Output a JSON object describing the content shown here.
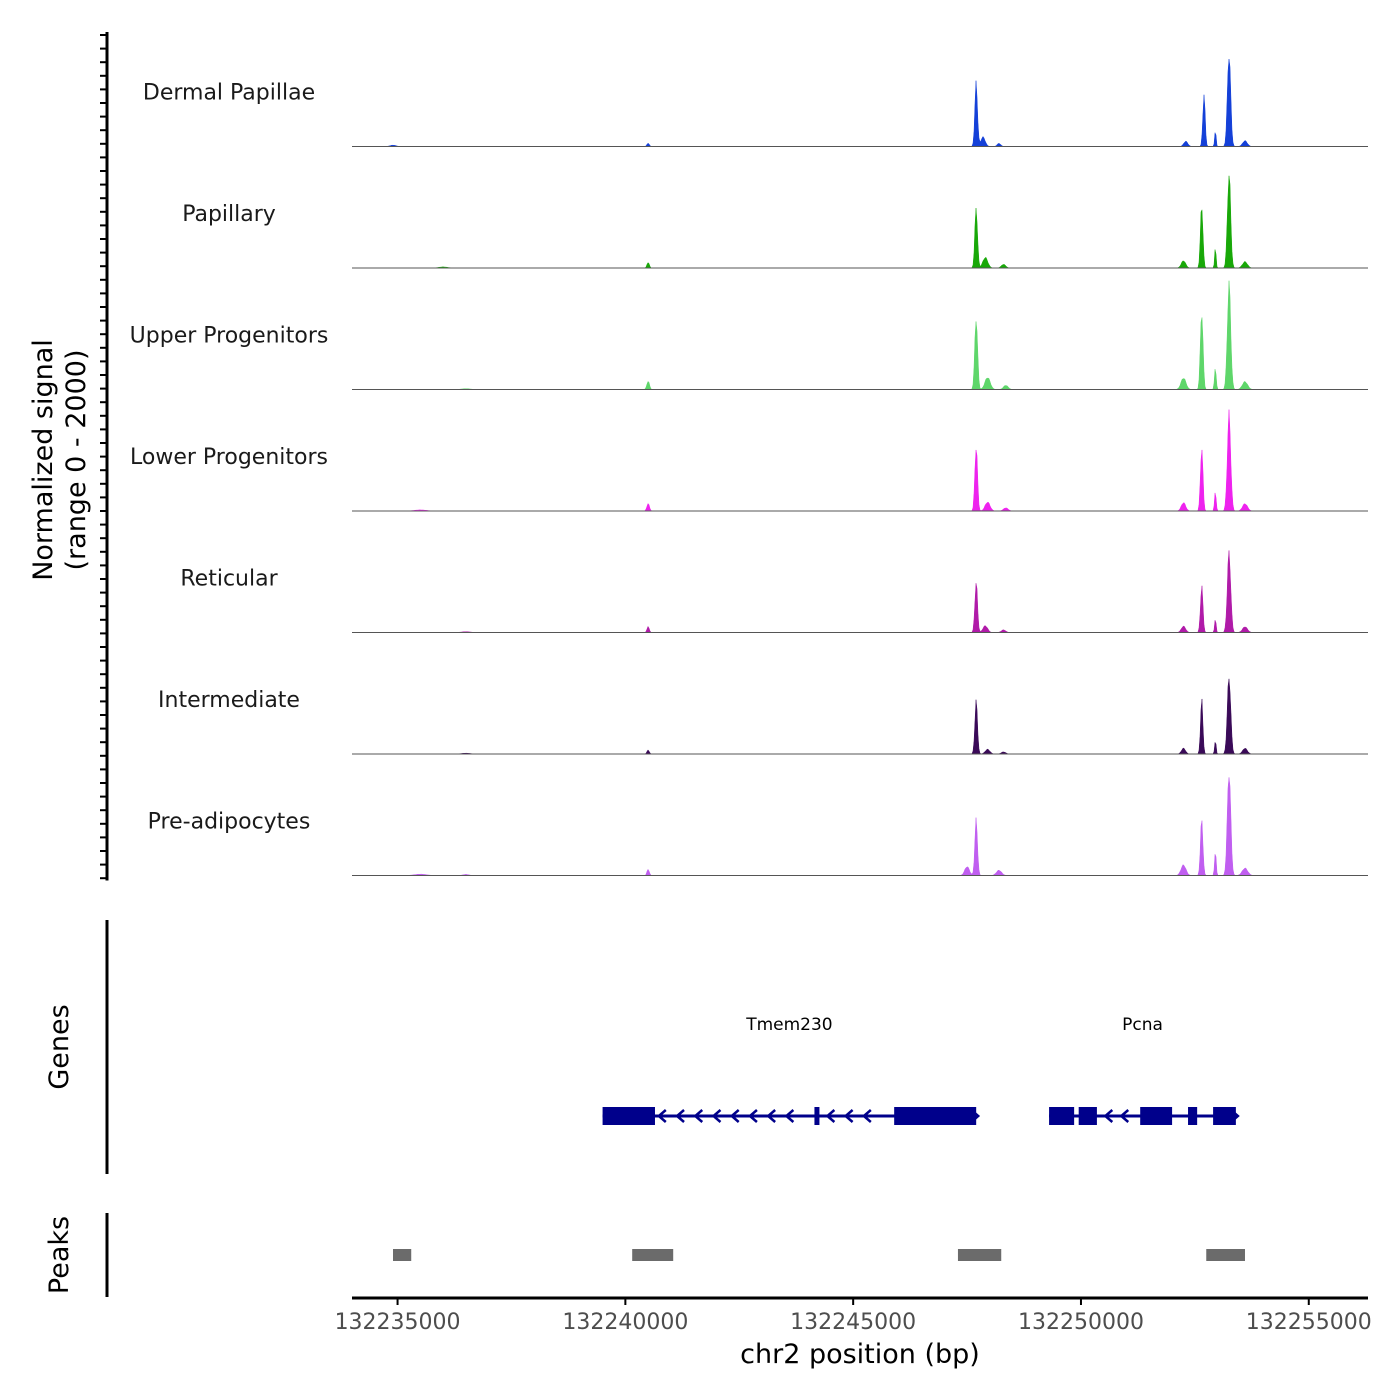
{
  "chart_data": {
    "type": "area",
    "title": "",
    "ylabel_line1": "Normalized signal",
    "ylabel_line2": "(range 0 - 2000)",
    "xlabel": "chr2 position (bp)",
    "chromosome": "chr2",
    "xlim": [
      132234000,
      132256300
    ],
    "ylim": [
      0,
      2000
    ],
    "x_ticks": [
      132235000,
      132240000,
      132245000,
      132250000,
      132255000
    ],
    "x_tick_labels": [
      "132235000",
      "132240000",
      "132245000",
      "132250000",
      "132255000"
    ],
    "series": [
      {
        "name": "Dermal Papillae",
        "color": "#1440d8",
        "peaks": [
          {
            "x": 132234900,
            "y": 25,
            "w": 200
          },
          {
            "x": 132240500,
            "y": 65,
            "w": 80
          },
          {
            "x": 132247700,
            "y": 1200,
            "w": 90
          },
          {
            "x": 132247850,
            "y": 180,
            "w": 150
          },
          {
            "x": 132248200,
            "y": 60,
            "w": 120
          },
          {
            "x": 132252700,
            "y": 980,
            "w": 80
          },
          {
            "x": 132252950,
            "y": 300,
            "w": 50
          },
          {
            "x": 132253250,
            "y": 1780,
            "w": 110
          },
          {
            "x": 132253600,
            "y": 110,
            "w": 160
          },
          {
            "x": 132252300,
            "y": 100,
            "w": 140
          }
        ]
      },
      {
        "name": "Papillary",
        "color": "#18a808",
        "peaks": [
          {
            "x": 132236000,
            "y": 20,
            "w": 300
          },
          {
            "x": 132240500,
            "y": 110,
            "w": 80
          },
          {
            "x": 132247700,
            "y": 1150,
            "w": 90
          },
          {
            "x": 132247900,
            "y": 200,
            "w": 170
          },
          {
            "x": 132248300,
            "y": 70,
            "w": 150
          },
          {
            "x": 132252650,
            "y": 1200,
            "w": 85
          },
          {
            "x": 132252950,
            "y": 380,
            "w": 50
          },
          {
            "x": 132253250,
            "y": 1800,
            "w": 110
          },
          {
            "x": 132253600,
            "y": 120,
            "w": 170
          },
          {
            "x": 132252250,
            "y": 140,
            "w": 150
          }
        ]
      },
      {
        "name": "Upper Progenitors",
        "color": "#5ed66a",
        "peaks": [
          {
            "x": 132236500,
            "y": 15,
            "w": 300
          },
          {
            "x": 132240500,
            "y": 160,
            "w": 90
          },
          {
            "x": 132247700,
            "y": 1380,
            "w": 95
          },
          {
            "x": 132247950,
            "y": 230,
            "w": 180
          },
          {
            "x": 132248350,
            "y": 80,
            "w": 160
          },
          {
            "x": 132252650,
            "y": 1500,
            "w": 90
          },
          {
            "x": 132252950,
            "y": 400,
            "w": 60
          },
          {
            "x": 132253250,
            "y": 2000,
            "w": 115
          },
          {
            "x": 132253600,
            "y": 150,
            "w": 180
          },
          {
            "x": 132252250,
            "y": 220,
            "w": 170
          }
        ]
      },
      {
        "name": "Lower Progenitors",
        "color": "#ee22ee",
        "peaks": [
          {
            "x": 132235500,
            "y": 20,
            "w": 400
          },
          {
            "x": 132240500,
            "y": 140,
            "w": 90
          },
          {
            "x": 132247700,
            "y": 1250,
            "w": 90
          },
          {
            "x": 132247950,
            "y": 170,
            "w": 170
          },
          {
            "x": 132248350,
            "y": 60,
            "w": 160
          },
          {
            "x": 132252650,
            "y": 1220,
            "w": 85
          },
          {
            "x": 132252950,
            "y": 380,
            "w": 55
          },
          {
            "x": 132253250,
            "y": 1820,
            "w": 115
          },
          {
            "x": 132253600,
            "y": 140,
            "w": 170
          },
          {
            "x": 132252250,
            "y": 160,
            "w": 150
          }
        ]
      },
      {
        "name": "Reticular",
        "color": "#b01aa8",
        "peaks": [
          {
            "x": 132236500,
            "y": 15,
            "w": 300
          },
          {
            "x": 132240500,
            "y": 110,
            "w": 80
          },
          {
            "x": 132247700,
            "y": 960,
            "w": 90
          },
          {
            "x": 132247900,
            "y": 130,
            "w": 160
          },
          {
            "x": 132248300,
            "y": 50,
            "w": 150
          },
          {
            "x": 132252650,
            "y": 880,
            "w": 85
          },
          {
            "x": 132252950,
            "y": 280,
            "w": 50
          },
          {
            "x": 132253250,
            "y": 1520,
            "w": 115
          },
          {
            "x": 132253600,
            "y": 110,
            "w": 170
          },
          {
            "x": 132252250,
            "y": 120,
            "w": 150
          }
        ]
      },
      {
        "name": "Intermediate",
        "color": "#3a0a58",
        "peaks": [
          {
            "x": 132236500,
            "y": 15,
            "w": 300
          },
          {
            "x": 132240500,
            "y": 75,
            "w": 80
          },
          {
            "x": 132247700,
            "y": 1000,
            "w": 90
          },
          {
            "x": 132247950,
            "y": 90,
            "w": 160
          },
          {
            "x": 132248300,
            "y": 40,
            "w": 150
          },
          {
            "x": 132252650,
            "y": 1020,
            "w": 80
          },
          {
            "x": 132252950,
            "y": 270,
            "w": 50
          },
          {
            "x": 132253250,
            "y": 1480,
            "w": 115
          },
          {
            "x": 132253600,
            "y": 110,
            "w": 160
          },
          {
            "x": 132252250,
            "y": 110,
            "w": 140
          }
        ]
      },
      {
        "name": "Pre-adipocytes",
        "color": "#c05ef0",
        "peaks": [
          {
            "x": 132235500,
            "y": 25,
            "w": 400
          },
          {
            "x": 132236500,
            "y": 20,
            "w": 200
          },
          {
            "x": 132240500,
            "y": 120,
            "w": 80
          },
          {
            "x": 132247700,
            "y": 1050,
            "w": 90
          },
          {
            "x": 132247500,
            "y": 170,
            "w": 160
          },
          {
            "x": 132248200,
            "y": 100,
            "w": 180
          },
          {
            "x": 132252650,
            "y": 1050,
            "w": 85
          },
          {
            "x": 132252950,
            "y": 460,
            "w": 55
          },
          {
            "x": 132253250,
            "y": 2000,
            "w": 115
          },
          {
            "x": 132253600,
            "y": 140,
            "w": 190
          },
          {
            "x": 132252250,
            "y": 200,
            "w": 170
          }
        ]
      }
    ],
    "genes_track_label": "Genes",
    "genes": [
      {
        "name": "Tmem230",
        "strand": "-",
        "start": 132239500,
        "end": 132247700,
        "exons": [
          [
            132239500,
            132240650
          ],
          [
            132244150,
            132244250
          ],
          [
            132245900,
            132247700
          ]
        ],
        "arrows": [
          132240800,
          132241200,
          132241600,
          132242000,
          132242400,
          132242800,
          132243200,
          132243600,
          132244500,
          132244900,
          132245300
        ]
      },
      {
        "name": "Pcna",
        "strand": "-",
        "start": 132249300,
        "end": 132253400,
        "exons": [
          [
            132249300,
            132249850
          ],
          [
            132249950,
            132250350
          ],
          [
            132251300,
            132252000
          ],
          [
            132252350,
            132252550
          ],
          [
            132252900,
            132253400
          ]
        ],
        "arrows": [
          132250600,
          132250950,
          132251550
        ]
      }
    ],
    "peaks_track_label": "Peaks",
    "peak_regions": [
      [
        132234900,
        132235300
      ],
      [
        132240150,
        132241050
      ],
      [
        132247300,
        132248250
      ],
      [
        132252750,
        132253600
      ]
    ]
  }
}
